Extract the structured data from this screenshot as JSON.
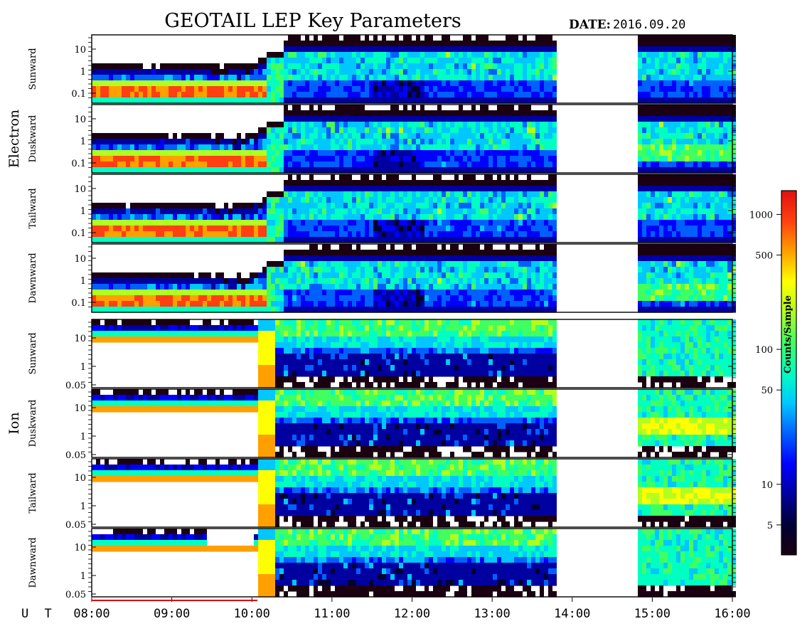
{
  "title": "GEOTAIL LEP Key Parameters",
  "date_label": "DATE:",
  "date_value": "2016.09.20",
  "colors": {
    "scale": [
      "#1a0010",
      "#000033",
      "#0000a0",
      "#0000ff",
      "#0060ff",
      "#00c8ff",
      "#00ffc0",
      "#40ff60",
      "#b0ff20",
      "#ffff00",
      "#ffa000",
      "#ff4010",
      "#e01010"
    ],
    "frame": "#000000",
    "background": "#ffffff"
  },
  "chart_data": {
    "type": "heatmap",
    "x_axis": {
      "label": "U T",
      "range": [
        "08:00",
        "16:00"
      ],
      "ticks": [
        "08:00",
        "09:00",
        "10:00",
        "11:00",
        "12:00",
        "13:00",
        "14:00",
        "15:00",
        "16:00"
      ]
    },
    "data_gap": [
      "13:50",
      "14:50"
    ],
    "groups": [
      {
        "name": "Electron",
        "panels": [
          {
            "direction": "Sunward",
            "y_ticks": [
              "10",
              "1",
              "0.1"
            ]
          },
          {
            "direction": "Duskward",
            "y_ticks": [
              "10",
              "1",
              "0.1"
            ]
          },
          {
            "direction": "Tailward",
            "y_ticks": [
              "10",
              "1",
              "0.1"
            ]
          },
          {
            "direction": "Dawnward",
            "y_ticks": [
              "10",
              "1",
              "0.1"
            ]
          }
        ]
      },
      {
        "name": "Ion",
        "panels": [
          {
            "direction": "Sunward",
            "y_ticks": [
              "10",
              "1",
              "0.05"
            ]
          },
          {
            "direction": "Duskward",
            "y_ticks": [
              "10",
              "1",
              "0.05"
            ]
          },
          {
            "direction": "Tailward",
            "y_ticks": [
              "10",
              "1",
              "0.05"
            ]
          },
          {
            "direction": "Dawnward",
            "y_ticks": [
              "10",
              "1",
              "0.05"
            ]
          }
        ]
      }
    ],
    "colorbar": {
      "label": "Counts/Sample",
      "scale": "log",
      "range": [
        3,
        1500
      ],
      "ticks": [
        "1000",
        "500",
        "100",
        "50",
        "10",
        "5"
      ]
    }
  }
}
